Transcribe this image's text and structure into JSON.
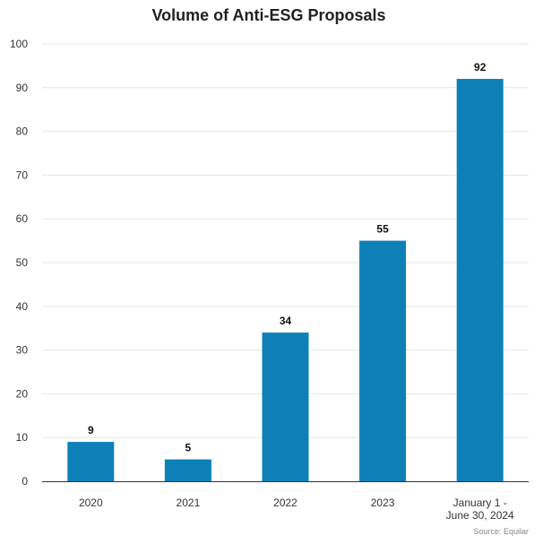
{
  "chart_data": {
    "type": "bar",
    "title": "Volume of Anti-ESG Proposals",
    "categories": [
      "2020",
      "2021",
      "2022",
      "2023",
      "January 1 -\nJune 30, 2024"
    ],
    "values": [
      9,
      5,
      34,
      55,
      92
    ],
    "ylim": [
      0,
      100
    ],
    "yticks": [
      0,
      10,
      20,
      30,
      40,
      50,
      60,
      70,
      80,
      90,
      100
    ],
    "xlabel": "",
    "ylabel": "",
    "grid": true,
    "legend": "none",
    "data_labels": true,
    "bar_color": "#0e80b8",
    "source": "Source: Equilar"
  }
}
